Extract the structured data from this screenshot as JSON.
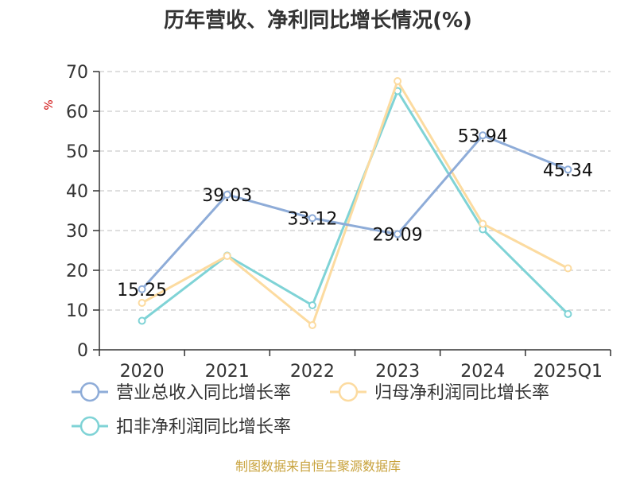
{
  "title": "历年营收、净利同比增长情况(%)",
  "source": "制图数据来自恒生聚源数据库",
  "colors": {
    "axis": "#333333",
    "grid": "#cccccc",
    "unit": "#cc0000",
    "source": "#c8a23c"
  },
  "chart_data": {
    "type": "line",
    "title": "历年营收、净利同比增长情况(%)",
    "ylabel": "%",
    "categories": [
      "2020",
      "2021",
      "2022",
      "2023",
      "2024",
      "2025Q1"
    ],
    "ylim": [
      0,
      70
    ],
    "yticks": [
      "0",
      "10",
      "20",
      "30",
      "40",
      "50",
      "60",
      "70"
    ],
    "grid": true,
    "legend_position": "bottom",
    "series": [
      {
        "name": "营业总收入同比增长率",
        "color": "#8eacd8",
        "values": [
          15.25,
          39.03,
          33.12,
          29.09,
          53.94,
          45.34
        ],
        "labels": [
          "15.25",
          "39.03",
          "33.12",
          "29.09",
          "53.94",
          "45.34"
        ]
      },
      {
        "name": "归母净利润同比增长率",
        "color": "#fcdba0",
        "values": [
          11.8,
          23.6,
          6.2,
          67.6,
          31.7,
          20.5
        ],
        "labels": []
      },
      {
        "name": "扣非净利润同比增长率",
        "color": "#7fd3d6",
        "values": [
          7.3,
          23.7,
          11.2,
          65.1,
          30.3,
          9.0
        ],
        "labels": []
      }
    ]
  }
}
